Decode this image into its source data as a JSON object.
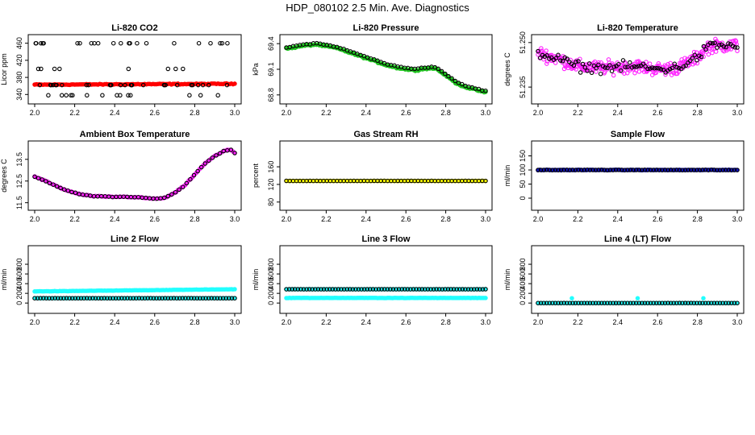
{
  "page_title": "HDP_080102  2.5 Min. Ave. Diagnostics",
  "colors": {
    "black": "#000000",
    "red": "#ff0000",
    "green": "#22c522",
    "magenta": "#ff22ff",
    "yellow": "#ffff00",
    "blue": "#1414c8",
    "cyan": "#22ffff"
  },
  "chart_data": [
    {
      "type": "scatter",
      "title": "Li-820 CO2",
      "ylabel": "Licor ppm",
      "xlabel": "",
      "xlim": [
        2.0,
        3.0
      ],
      "ylim": [
        333,
        465
      ],
      "xticks": [
        "2.0",
        "2.2",
        "2.4",
        "2.6",
        "2.8",
        "3.0"
      ],
      "xtick_values": [
        2.0,
        2.2,
        2.4,
        2.6,
        2.8,
        3.0
      ],
      "yticks": [
        "340",
        "380",
        "420",
        "460"
      ],
      "ytick_values": [
        340,
        380,
        420,
        460
      ],
      "series": [
        {
          "name": "co2-main",
          "color": "red",
          "filled": true,
          "x_range": [
            2.0,
            3.0
          ],
          "count": 121,
          "base": 363,
          "slope": 2,
          "jitter": 1.5
        },
        {
          "name": "co2-scatter",
          "color": "black",
          "filled": false,
          "count": 72,
          "levels": [
            338,
            362,
            400,
            460
          ],
          "level_weights": [
            0.2,
            0.35,
            0.15,
            0.3
          ]
        }
      ]
    },
    {
      "type": "scatter",
      "title": "Li-820 Pressure",
      "ylabel": "kPa",
      "xlabel": "",
      "xlim": [
        2.0,
        3.0
      ],
      "ylim": [
        68.77,
        69.43
      ],
      "xticks": [
        "2.0",
        "2.2",
        "2.4",
        "2.6",
        "2.8",
        "3.0"
      ],
      "xtick_values": [
        2.0,
        2.2,
        2.4,
        2.6,
        2.8,
        3.0
      ],
      "yticks": [
        "68.8",
        "69.1",
        "69.4"
      ],
      "ytick_values": [
        68.8,
        69.1,
        69.4
      ],
      "series": [
        {
          "name": "pressure-main",
          "color": "green",
          "filled": true,
          "count": 140,
          "jitter": 0.012,
          "curve_x": [
            2.0,
            2.05,
            2.1,
            2.15,
            2.2,
            2.25,
            2.3,
            2.35,
            2.4,
            2.45,
            2.5,
            2.55,
            2.6,
            2.65,
            2.7,
            2.75,
            2.8,
            2.85,
            2.9,
            2.95,
            3.0
          ],
          "curve_y": [
            69.34,
            69.36,
            69.38,
            69.39,
            69.37,
            69.35,
            69.31,
            69.27,
            69.23,
            69.19,
            69.15,
            69.12,
            69.1,
            69.09,
            69.11,
            69.11,
            69.03,
            68.94,
            68.89,
            68.86,
            68.83
          ]
        },
        {
          "name": "pressure-dots",
          "color": "black",
          "filled": false,
          "count": 60,
          "jitter": 0.008,
          "offset": 0.015,
          "curve_x": [
            2.0,
            2.05,
            2.1,
            2.15,
            2.2,
            2.25,
            2.3,
            2.35,
            2.4,
            2.45,
            2.5,
            2.55,
            2.6,
            2.65,
            2.7,
            2.75,
            2.8,
            2.85,
            2.9,
            2.95,
            3.0
          ],
          "curve_y": [
            69.34,
            69.36,
            69.38,
            69.39,
            69.37,
            69.35,
            69.31,
            69.27,
            69.23,
            69.19,
            69.15,
            69.12,
            69.1,
            69.09,
            69.11,
            69.11,
            69.03,
            68.94,
            68.89,
            68.86,
            68.83
          ]
        }
      ]
    },
    {
      "type": "scatter",
      "title": "Li-820 Temperature",
      "ylabel": "degrees C",
      "xlabel": "",
      "xlim": [
        2.0,
        3.0
      ],
      "ylim": [
        51.2315,
        51.2505
      ],
      "xticks": [
        "2.0",
        "2.2",
        "2.4",
        "2.6",
        "2.8",
        "3.0"
      ],
      "xtick_values": [
        2.0,
        2.2,
        2.4,
        2.6,
        2.8,
        3.0
      ],
      "yticks": [
        "51.235",
        "51.250"
      ],
      "ytick_values": [
        51.235,
        51.25
      ],
      "series": [
        {
          "name": "temp-main",
          "color": "magenta",
          "filled": false,
          "count": 320,
          "jitter": 0.0032,
          "curve_x": [
            2.0,
            2.1,
            2.2,
            2.3,
            2.4,
            2.5,
            2.6,
            2.7,
            2.8,
            2.85,
            2.9,
            3.0
          ],
          "curve_y": [
            51.2465,
            51.2445,
            51.242,
            51.2415,
            51.2418,
            51.242,
            51.241,
            51.2415,
            51.245,
            51.2485,
            51.249,
            51.249
          ]
        },
        {
          "name": "temp-dots",
          "color": "black",
          "filled": false,
          "count": 90,
          "jitter": 0.0025,
          "curve_x": [
            2.0,
            2.1,
            2.2,
            2.3,
            2.4,
            2.5,
            2.6,
            2.7,
            2.8,
            2.85,
            2.9,
            3.0
          ],
          "curve_y": [
            51.2465,
            51.2445,
            51.242,
            51.2415,
            51.2418,
            51.242,
            51.241,
            51.2415,
            51.245,
            51.2485,
            51.249,
            51.249
          ]
        }
      ]
    },
    {
      "type": "scatter",
      "title": "Ambient Box Temperature",
      "ylabel": "degrees C",
      "xlabel": "",
      "xlim": [
        2.0,
        3.0
      ],
      "ylim": [
        11.45,
        14.05
      ],
      "xticks": [
        "2.0",
        "2.2",
        "2.4",
        "2.6",
        "2.8",
        "3.0"
      ],
      "xtick_values": [
        2.0,
        2.2,
        2.4,
        2.6,
        2.8,
        3.0
      ],
      "yticks": [
        "11.5",
        "12.5",
        "13.5"
      ],
      "ytick_values": [
        11.5,
        12.5,
        13.5
      ],
      "series": [
        {
          "name": "box-main",
          "color": "magenta",
          "filled": true,
          "count": 110,
          "jitter": 0.03,
          "curve_x": [
            2.0,
            2.05,
            2.1,
            2.15,
            2.2,
            2.25,
            2.3,
            2.35,
            2.4,
            2.45,
            2.5,
            2.55,
            2.6,
            2.65,
            2.7,
            2.75,
            2.8,
            2.85,
            2.9,
            2.95,
            2.98,
            3.0
          ],
          "curve_y": [
            12.7,
            12.52,
            12.3,
            12.1,
            11.95,
            11.85,
            11.8,
            11.78,
            11.77,
            11.77,
            11.76,
            11.72,
            11.68,
            11.72,
            11.95,
            12.3,
            12.8,
            13.3,
            13.65,
            13.9,
            13.95,
            13.8
          ]
        },
        {
          "name": "box-dots",
          "color": "black",
          "filled": false,
          "count": 55,
          "jitter": 0.02,
          "curve_x": [
            2.0,
            2.05,
            2.1,
            2.15,
            2.2,
            2.25,
            2.3,
            2.35,
            2.4,
            2.45,
            2.5,
            2.55,
            2.6,
            2.65,
            2.7,
            2.75,
            2.8,
            2.85,
            2.9,
            2.95,
            2.98,
            3.0
          ],
          "curve_y": [
            12.7,
            12.52,
            12.3,
            12.1,
            11.95,
            11.85,
            11.8,
            11.78,
            11.77,
            11.77,
            11.76,
            11.72,
            11.68,
            11.72,
            11.95,
            12.3,
            12.8,
            13.3,
            13.65,
            13.9,
            13.95,
            13.8
          ]
        }
      ]
    },
    {
      "type": "scatter",
      "title": "Gas Stream RH",
      "ylabel": "percent",
      "xlabel": "",
      "xlim": [
        2.0,
        3.0
      ],
      "ylim": [
        76,
        204
      ],
      "xticks": [
        "2.0",
        "2.2",
        "2.4",
        "2.6",
        "2.8",
        "3.0"
      ],
      "xtick_values": [
        2.0,
        2.2,
        2.4,
        2.6,
        2.8,
        3.0
      ],
      "yticks": [
        "80",
        "120",
        "160"
      ],
      "ytick_values": [
        80,
        120,
        160
      ],
      "series": [
        {
          "name": "rh-main",
          "color": "yellow",
          "filled": true,
          "count": 100,
          "const": 128,
          "jitter": 0.3
        },
        {
          "name": "rh-dots",
          "color": "black",
          "filled": false,
          "count": 60,
          "const": 128,
          "jitter": 0.2
        }
      ]
    },
    {
      "type": "scatter",
      "title": "Sample Flow",
      "ylabel": "ml/min",
      "xlabel": "",
      "xlim": [
        2.0,
        3.0
      ],
      "ylim": [
        -20,
        180
      ],
      "xticks": [
        "2.0",
        "2.2",
        "2.4",
        "2.6",
        "2.8",
        "3.0"
      ],
      "xtick_values": [
        2.0,
        2.2,
        2.4,
        2.6,
        2.8,
        3.0
      ],
      "yticks": [
        "0",
        "50",
        "100",
        "150"
      ],
      "ytick_values": [
        0,
        50,
        100,
        150
      ],
      "series": [
        {
          "name": "sample-main",
          "color": "blue",
          "filled": true,
          "count": 121,
          "const": 100,
          "jitter": 1.2
        },
        {
          "name": "sample-dots",
          "color": "black",
          "filled": false,
          "count": 70,
          "const": 100,
          "jitter": 1.0
        }
      ]
    },
    {
      "type": "scatter",
      "title": "Line 2 Flow",
      "ylabel": "ml/min",
      "xlabel": "",
      "xlim": [
        2.0,
        3.0
      ],
      "ylim": [
        -80,
        1050
      ],
      "xticks": [
        "2.0",
        "2.2",
        "2.4",
        "2.6",
        "2.8",
        "3.0"
      ],
      "xtick_values": [
        2.0,
        2.2,
        2.4,
        2.6,
        2.8,
        3.0
      ],
      "yticks": [
        "0",
        "200",
        "400",
        "600",
        "800"
      ],
      "ytick_values": [
        0,
        200,
        400,
        600,
        800
      ],
      "series": [
        {
          "name": "line2-upper",
          "color": "cyan",
          "filled": true,
          "count": 121,
          "base": 240,
          "slope": 45,
          "jitter": 4
        },
        {
          "name": "line2-lower",
          "color": "cyan",
          "filled": true,
          "count": 121,
          "const": 100,
          "jitter": 3
        },
        {
          "name": "line2-dots",
          "color": "black",
          "filled": false,
          "count": 70,
          "const": 100,
          "jitter": 2
        }
      ]
    },
    {
      "type": "scatter",
      "title": "Line 3 Flow",
      "ylabel": "ml/min",
      "xlabel": "",
      "xlim": [
        2.0,
        3.0
      ],
      "ylim": [
        -80,
        1050
      ],
      "xticks": [
        "2.0",
        "2.2",
        "2.4",
        "2.6",
        "2.8",
        "3.0"
      ],
      "xtick_values": [
        2.0,
        2.2,
        2.4,
        2.6,
        2.8,
        3.0
      ],
      "yticks": [
        "0",
        "200",
        "400",
        "600",
        "800"
      ],
      "ytick_values": [
        0,
        200,
        400,
        600,
        800
      ],
      "series": [
        {
          "name": "line3-upper",
          "color": "cyan",
          "filled": true,
          "count": 100,
          "const": 285,
          "jitter": 3
        },
        {
          "name": "line3-lower",
          "color": "cyan",
          "filled": true,
          "count": 121,
          "const": 105,
          "jitter": 3
        },
        {
          "name": "line3-dots",
          "color": "black",
          "filled": false,
          "count": 70,
          "const": 285,
          "jitter": 2
        }
      ]
    },
    {
      "type": "scatter",
      "title": "Line 4 (LT) Flow",
      "ylabel": "ml/min",
      "xlabel": "",
      "xlim": [
        2.0,
        3.0
      ],
      "ylim": [
        -80,
        1050
      ],
      "xticks": [
        "2.0",
        "2.2",
        "2.4",
        "2.6",
        "2.8",
        "3.0"
      ],
      "xtick_values": [
        2.0,
        2.2,
        2.4,
        2.6,
        2.8,
        3.0
      ],
      "yticks": [
        "0",
        "200",
        "400",
        "600",
        "800"
      ],
      "ytick_values": [
        0,
        200,
        400,
        600,
        800
      ],
      "series": [
        {
          "name": "line4-main",
          "color": "cyan",
          "filled": true,
          "count": 100,
          "const": 0,
          "jitter": 1
        },
        {
          "name": "line4-spikes",
          "color": "cyan",
          "filled": true,
          "points_x": [
            2.17,
            2.5,
            2.83
          ],
          "points_y": [
            100,
            100,
            100
          ]
        },
        {
          "name": "line4-dots",
          "color": "black",
          "filled": false,
          "count": 70,
          "const": 0,
          "jitter": 1
        }
      ]
    }
  ]
}
